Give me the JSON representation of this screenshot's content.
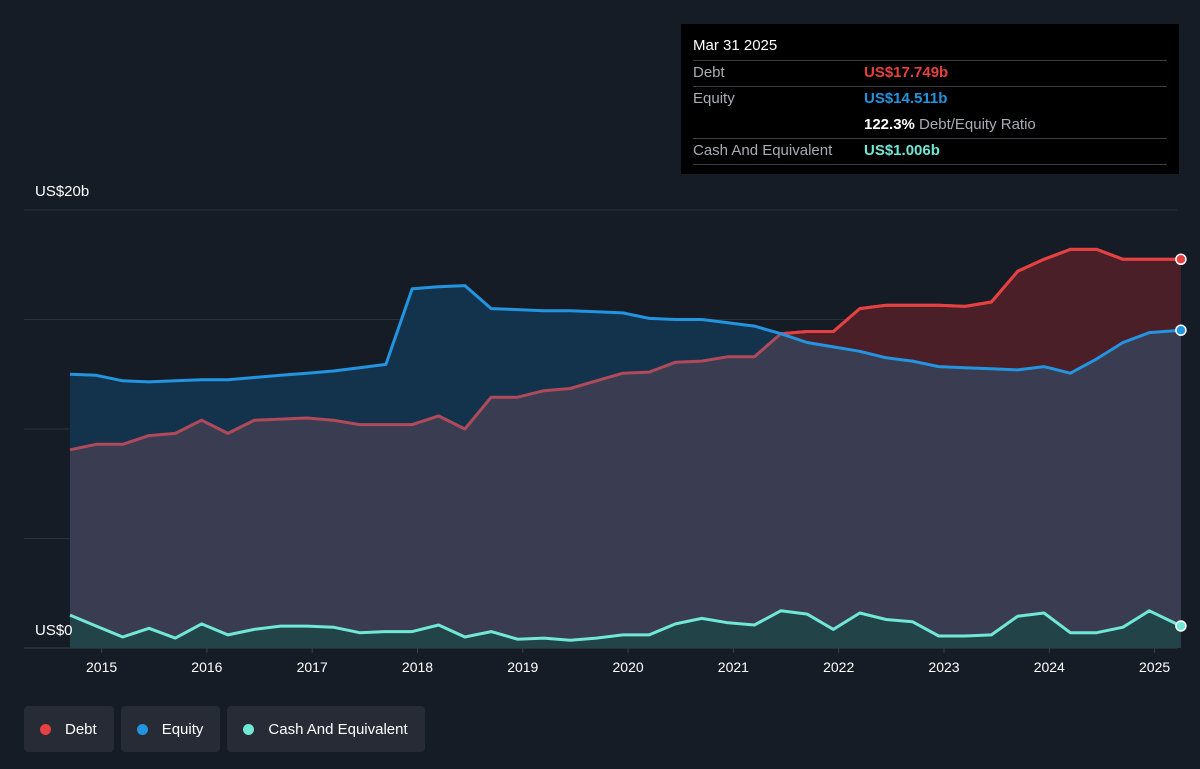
{
  "tooltip": {
    "date": "Mar 31 2025",
    "debt_label": "Debt",
    "debt_value": "US$17.749b",
    "equity_label": "Equity",
    "equity_value": "US$14.511b",
    "ratio_value": "122.3%",
    "ratio_label": "Debt/Equity Ratio",
    "cash_label": "Cash And Equivalent",
    "cash_value": "US$1.006b"
  },
  "colors": {
    "debt": "#e64141",
    "equity": "#2394df",
    "cash": "#71e7d6",
    "background": "#161c26"
  },
  "legend": [
    {
      "label": "Debt",
      "color": "#e64141"
    },
    {
      "label": "Equity",
      "color": "#2394df"
    },
    {
      "label": "Cash And Equivalent",
      "color": "#71e7d6"
    }
  ],
  "chart_data": {
    "type": "area",
    "ylabel_top": "US$20b",
    "ylabel_bottom": "US$0",
    "ylim": [
      0,
      20
    ],
    "xlim": [
      2014.55,
      2025.25
    ],
    "grid": true,
    "x_ticks": [
      "2015",
      "2016",
      "2017",
      "2018",
      "2019",
      "2020",
      "2021",
      "2022",
      "2023",
      "2024",
      "2025"
    ],
    "series": [
      {
        "name": "Debt",
        "color": "#e64141",
        "x": [
          2014.7,
          2014.95,
          2015.2,
          2015.45,
          2015.7,
          2015.95,
          2016.2,
          2016.45,
          2016.7,
          2016.95,
          2017.2,
          2017.45,
          2017.7,
          2017.95,
          2018.2,
          2018.45,
          2018.7,
          2018.95,
          2019.2,
          2019.45,
          2019.7,
          2019.95,
          2020.2,
          2020.45,
          2020.7,
          2020.95,
          2021.2,
          2021.45,
          2021.7,
          2021.95,
          2022.2,
          2022.45,
          2022.7,
          2022.95,
          2023.2,
          2023.45,
          2023.7,
          2023.95,
          2024.2,
          2024.45,
          2024.7,
          2024.95,
          2025.25
        ],
        "values": [
          9.05,
          9.3,
          9.3,
          9.7,
          9.8,
          10.4,
          9.8,
          10.4,
          10.45,
          10.5,
          10.4,
          10.2,
          10.2,
          10.2,
          10.6,
          10.0,
          11.45,
          11.45,
          11.75,
          11.85,
          12.2,
          12.55,
          12.6,
          13.05,
          13.1,
          13.3,
          13.3,
          14.35,
          14.45,
          14.45,
          15.5,
          15.65,
          15.65,
          15.65,
          15.6,
          15.8,
          17.2,
          17.75,
          18.2,
          18.2,
          17.75,
          17.75,
          17.75
        ]
      },
      {
        "name": "Equity",
        "color": "#2394df",
        "x": [
          2014.7,
          2014.95,
          2015.2,
          2015.45,
          2015.7,
          2015.95,
          2016.2,
          2016.45,
          2016.7,
          2016.95,
          2017.2,
          2017.45,
          2017.7,
          2017.95,
          2018.2,
          2018.45,
          2018.7,
          2018.95,
          2019.2,
          2019.45,
          2019.7,
          2019.95,
          2020.2,
          2020.45,
          2020.7,
          2020.95,
          2021.2,
          2021.45,
          2021.7,
          2021.95,
          2022.2,
          2022.45,
          2022.7,
          2022.95,
          2023.2,
          2023.45,
          2023.7,
          2023.95,
          2024.2,
          2024.45,
          2024.7,
          2024.95,
          2025.25
        ],
        "values": [
          12.5,
          12.45,
          12.2,
          12.15,
          12.2,
          12.25,
          12.25,
          12.35,
          12.45,
          12.55,
          12.65,
          12.8,
          12.95,
          16.4,
          16.5,
          16.55,
          15.5,
          15.45,
          15.4,
          15.4,
          15.35,
          15.3,
          15.05,
          15.0,
          15.0,
          14.85,
          14.7,
          14.35,
          13.95,
          13.75,
          13.55,
          13.25,
          13.1,
          12.85,
          12.8,
          12.75,
          12.7,
          12.85,
          12.55,
          13.2,
          13.95,
          14.4,
          14.511
        ]
      },
      {
        "name": "Cash And Equivalent",
        "color": "#71e7d6",
        "x": [
          2014.7,
          2014.95,
          2015.2,
          2015.45,
          2015.7,
          2015.95,
          2016.2,
          2016.45,
          2016.7,
          2016.95,
          2017.2,
          2017.45,
          2017.7,
          2017.95,
          2018.2,
          2018.45,
          2018.7,
          2018.95,
          2019.2,
          2019.45,
          2019.7,
          2019.95,
          2020.2,
          2020.45,
          2020.7,
          2020.95,
          2021.2,
          2021.45,
          2021.7,
          2021.95,
          2022.2,
          2022.45,
          2022.7,
          2022.95,
          2023.2,
          2023.45,
          2023.7,
          2023.95,
          2024.2,
          2024.45,
          2024.7,
          2024.95,
          2025.25
        ],
        "values": [
          1.5,
          1.0,
          0.5,
          0.9,
          0.45,
          1.1,
          0.6,
          0.85,
          1.0,
          1.0,
          0.95,
          0.7,
          0.75,
          0.75,
          1.05,
          0.5,
          0.75,
          0.4,
          0.45,
          0.35,
          0.45,
          0.6,
          0.6,
          1.1,
          1.35,
          1.15,
          1.05,
          1.7,
          1.55,
          0.85,
          1.6,
          1.3,
          1.2,
          0.55,
          0.55,
          0.6,
          1.45,
          1.6,
          0.7,
          0.7,
          0.95,
          1.7,
          1.006
        ]
      }
    ]
  }
}
